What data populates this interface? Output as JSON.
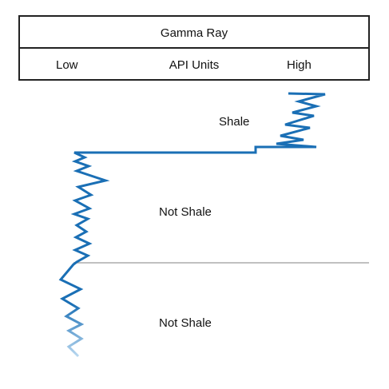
{
  "header": {
    "title": "Gamma Ray",
    "scale_low": "Low",
    "scale_units": "API Units",
    "scale_high": "High"
  },
  "zones": [
    {
      "label": "Shale"
    },
    {
      "label": "Not Shale"
    },
    {
      "label": "Not Shale"
    }
  ],
  "colors": {
    "curve": "#1a6fb5",
    "curve_faded": "#8fbfe2",
    "border": "#222222",
    "divider": "#9a9a9a"
  }
}
